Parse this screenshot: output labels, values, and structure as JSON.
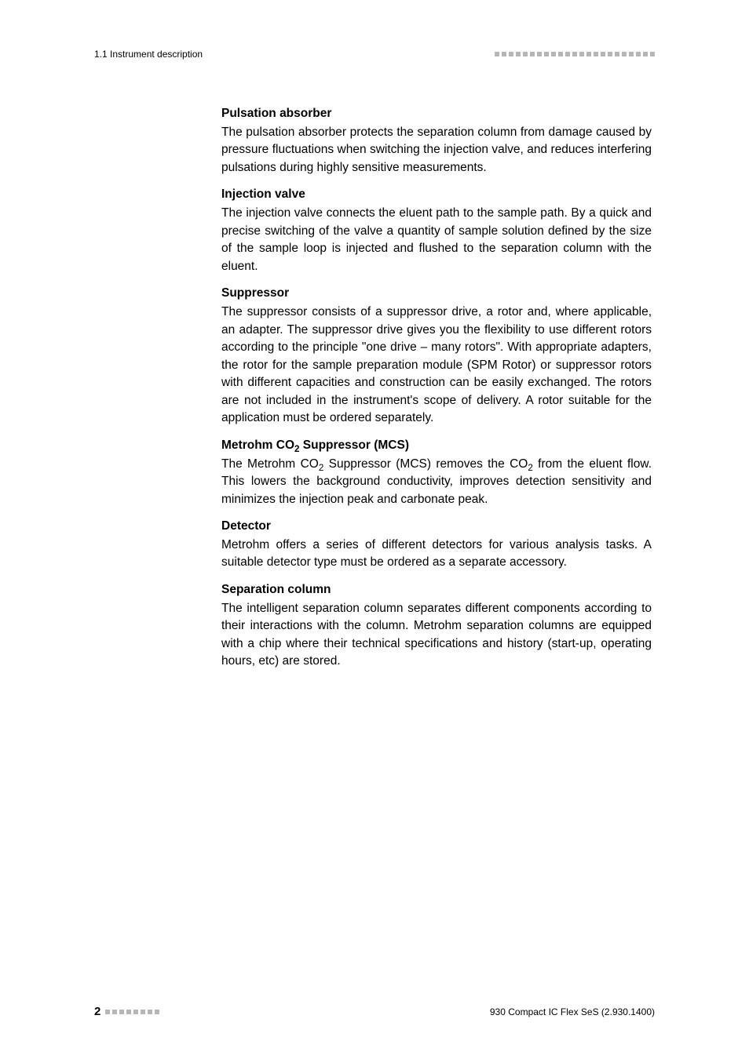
{
  "header": {
    "section_label": "1.1 Instrument description",
    "dot_count": 23,
    "dot_color": "#b7b6b6"
  },
  "sections": [
    {
      "title": "Pulsation absorber",
      "body": "The pulsation absorber protects the separation column from damage caused by pressure fluctuations when switching the injection valve, and reduces interfering pulsations during highly sensitive measurements."
    },
    {
      "title": "Injection valve",
      "body": "The injection valve connects the eluent path to the sample path. By a quick and precise switching of the valve a quantity of sample solution defined by the size of the sample loop is injected and flushed to the separation column with the eluent."
    },
    {
      "title": "Suppressor",
      "body": "The suppressor consists of a suppressor drive, a rotor and, where applicable, an adapter. The suppressor drive gives you the flexibility to use different rotors according to the principle \"one drive – many rotors\". With appropriate adapters, the rotor for the sample preparation module (SPM Rotor) or suppressor rotors with different capacities and construction can be easily exchanged. The rotors are not included in the instrument's scope of delivery. A rotor suitable for the application must be ordered separately."
    },
    {
      "title_html": "Metrohm CO<sub>2</sub> Suppressor (MCS)",
      "body_html": "The Metrohm CO<sub>2</sub> Suppressor (MCS) removes the CO<sub>2</sub> from the eluent flow. This lowers the background conductivity, improves detection sensitivity and minimizes the injection peak and carbonate peak."
    },
    {
      "title": "Detector",
      "body": "Metrohm offers a series of different detectors for various analysis tasks. A suitable detector type must be ordered as a separate accessory."
    },
    {
      "title": "Separation column",
      "body": "The intelligent separation column separates different components according to their interactions with the column. Metrohm separation columns are equipped with a chip where their technical specifications and history (start-up, operating hours, etc) are stored."
    }
  ],
  "footer": {
    "page_number": "2",
    "dot_count": 8,
    "dot_color": "#b7b6b6",
    "doc_ref": "930 Compact IC Flex SeS (2.930.1400)"
  }
}
